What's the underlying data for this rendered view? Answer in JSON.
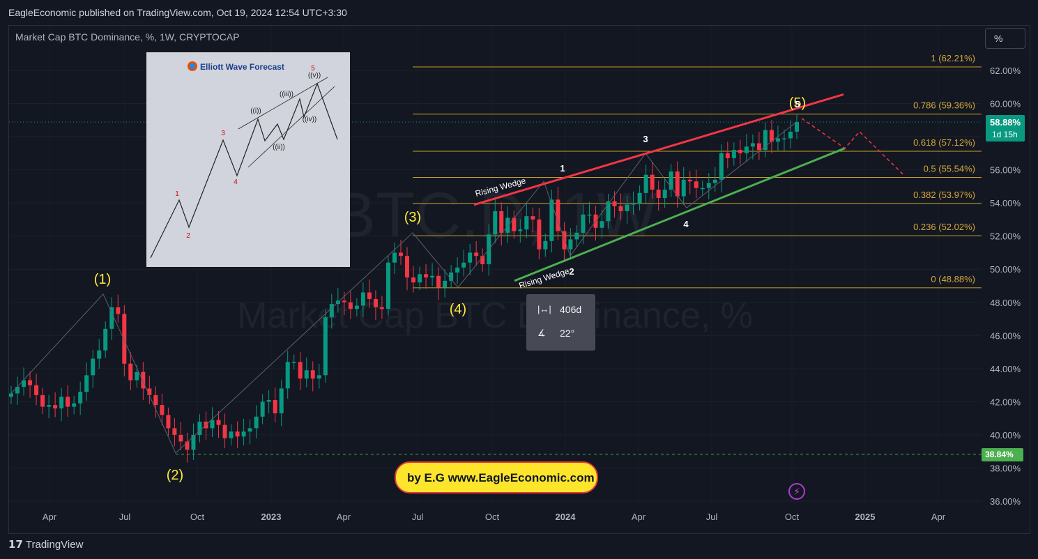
{
  "header": {
    "publisher": "EagleEconomic published on TradingView.com, Oct 19, 2024 12:54 UTC+3:30"
  },
  "symbol": "Market Cap BTC Dominance, %, 1W, CRYPTOCAP",
  "scale_button": "%",
  "watermark": {
    "big": "BTC.D, 1W",
    "sub": "Market Cap BTC Dominance, %"
  },
  "price_badge": {
    "price": "58.88%",
    "countdown": "1d 15h"
  },
  "low_badge": "38.84%",
  "measure_tool": {
    "bars": "406d",
    "angle": "22°"
  },
  "brand_label": "by E.G www.EagleEconomic.com",
  "footer_logo": "TradingView",
  "inset": {
    "title": "Elliott Wave Forecast",
    "labels": [
      "1",
      "2",
      "3",
      "4",
      "5",
      "((i))",
      "((ii))",
      "((iii))",
      "((iv))",
      "((v))"
    ]
  },
  "chart_data": {
    "type": "candlestick",
    "title": "Market Cap BTC Dominance, %, 1W, CRYPTOCAP",
    "ylim": [
      36,
      63.5
    ],
    "y_ticks": [
      "36.00%",
      "38.00%",
      "40.00%",
      "42.00%",
      "44.00%",
      "46.00%",
      "48.00%",
      "50.00%",
      "52.00%",
      "54.00%",
      "56.00%",
      "58.00%",
      "60.00%",
      "62.00%"
    ],
    "x_ticks": [
      "Apr",
      "Jul",
      "Oct",
      "2023",
      "Apr",
      "Jul",
      "Oct",
      "2024",
      "Apr",
      "Jul",
      "Oct",
      "2025",
      "Apr"
    ],
    "colors": {
      "up": "#089981",
      "down": "#f23645",
      "fib": "#c9a227",
      "wedge_top": "#f23645",
      "wedge_bottom": "#4caf50",
      "wave": "#ffeb3b"
    },
    "fib_levels": [
      {
        "label": "1 (62.21%)",
        "value": 62.21
      },
      {
        "label": "0.786 (59.36%)",
        "value": 59.36
      },
      {
        "label": "0.618 (57.12%)",
        "value": 57.12
      },
      {
        "label": "0.5 (55.54%)",
        "value": 55.54
      },
      {
        "label": "0.382 (53.97%)",
        "value": 53.97
      },
      {
        "label": "0.236 (52.02%)",
        "value": 52.02
      },
      {
        "label": "0 (48.88%)",
        "value": 48.88
      }
    ],
    "major_waves": [
      {
        "label": "(1)",
        "value": 48.5
      },
      {
        "label": "(2)",
        "value": 38.9
      },
      {
        "label": "(3)",
        "value": 52.2
      },
      {
        "label": "(4)",
        "value": 48.9
      },
      {
        "label": "(5)",
        "value": 59.4
      }
    ],
    "minor_waves": [
      {
        "label": "1",
        "value": 55.3
      },
      {
        "label": "2",
        "value": 50.8
      },
      {
        "label": "3",
        "value": 57.0
      },
      {
        "label": "4",
        "value": 53.7
      },
      {
        "label": "5",
        "value": 58.9
      }
    ],
    "pattern_labels": [
      "Rising Wedge",
      "Rising Wedge"
    ],
    "current_price": 58.88,
    "cycle_low": 38.84,
    "closes": [
      42.5,
      42.9,
      43.3,
      43.0,
      42.4,
      41.7,
      41.8,
      41.6,
      42.3,
      41.7,
      41.9,
      42.6,
      43.6,
      44.6,
      45.1,
      46.4,
      47.7,
      47.3,
      44.3,
      43.3,
      43.8,
      42.8,
      42.4,
      41.8,
      41.2,
      40.4,
      40.0,
      39.6,
      39.1,
      40.0,
      40.8,
      40.4,
      40.9,
      40.6,
      39.8,
      40.2,
      39.9,
      40.2,
      40.4,
      41.1,
      42.0,
      42.1,
      41.3,
      42.8,
      44.4,
      44.4,
      43.4,
      43.9,
      43.4,
      43.6,
      47.1,
      47.9,
      48.1,
      48.0,
      47.6,
      47.8,
      48.6,
      48.2,
      47.7,
      47.6,
      50.4,
      51.0,
      50.8,
      49.5,
      49.2,
      49.7,
      49.5,
      49.6,
      48.9,
      49.3,
      49.8,
      50.1,
      50.4,
      51.0,
      50.8,
      50.3,
      52.1,
      53.5,
      52.2,
      53.1,
      52.3,
      52.4,
      53.2,
      53.0,
      51.2,
      51.7,
      54.2,
      52.3,
      51.2,
      51.8,
      52.2,
      53.3,
      53.3,
      52.5,
      52.9,
      54.1,
      53.8,
      53.5,
      53.9,
      54.0,
      54.6,
      55.7,
      54.8,
      54.3,
      54.8,
      55.9,
      54.4,
      55.4,
      55.3,
      54.9,
      54.9,
      55.2,
      55.4,
      57.0,
      56.7,
      57.2,
      57.0,
      57.4,
      57.6,
      57.2,
      58.4,
      57.7,
      57.9,
      57.9,
      58.3,
      58.88
    ]
  }
}
